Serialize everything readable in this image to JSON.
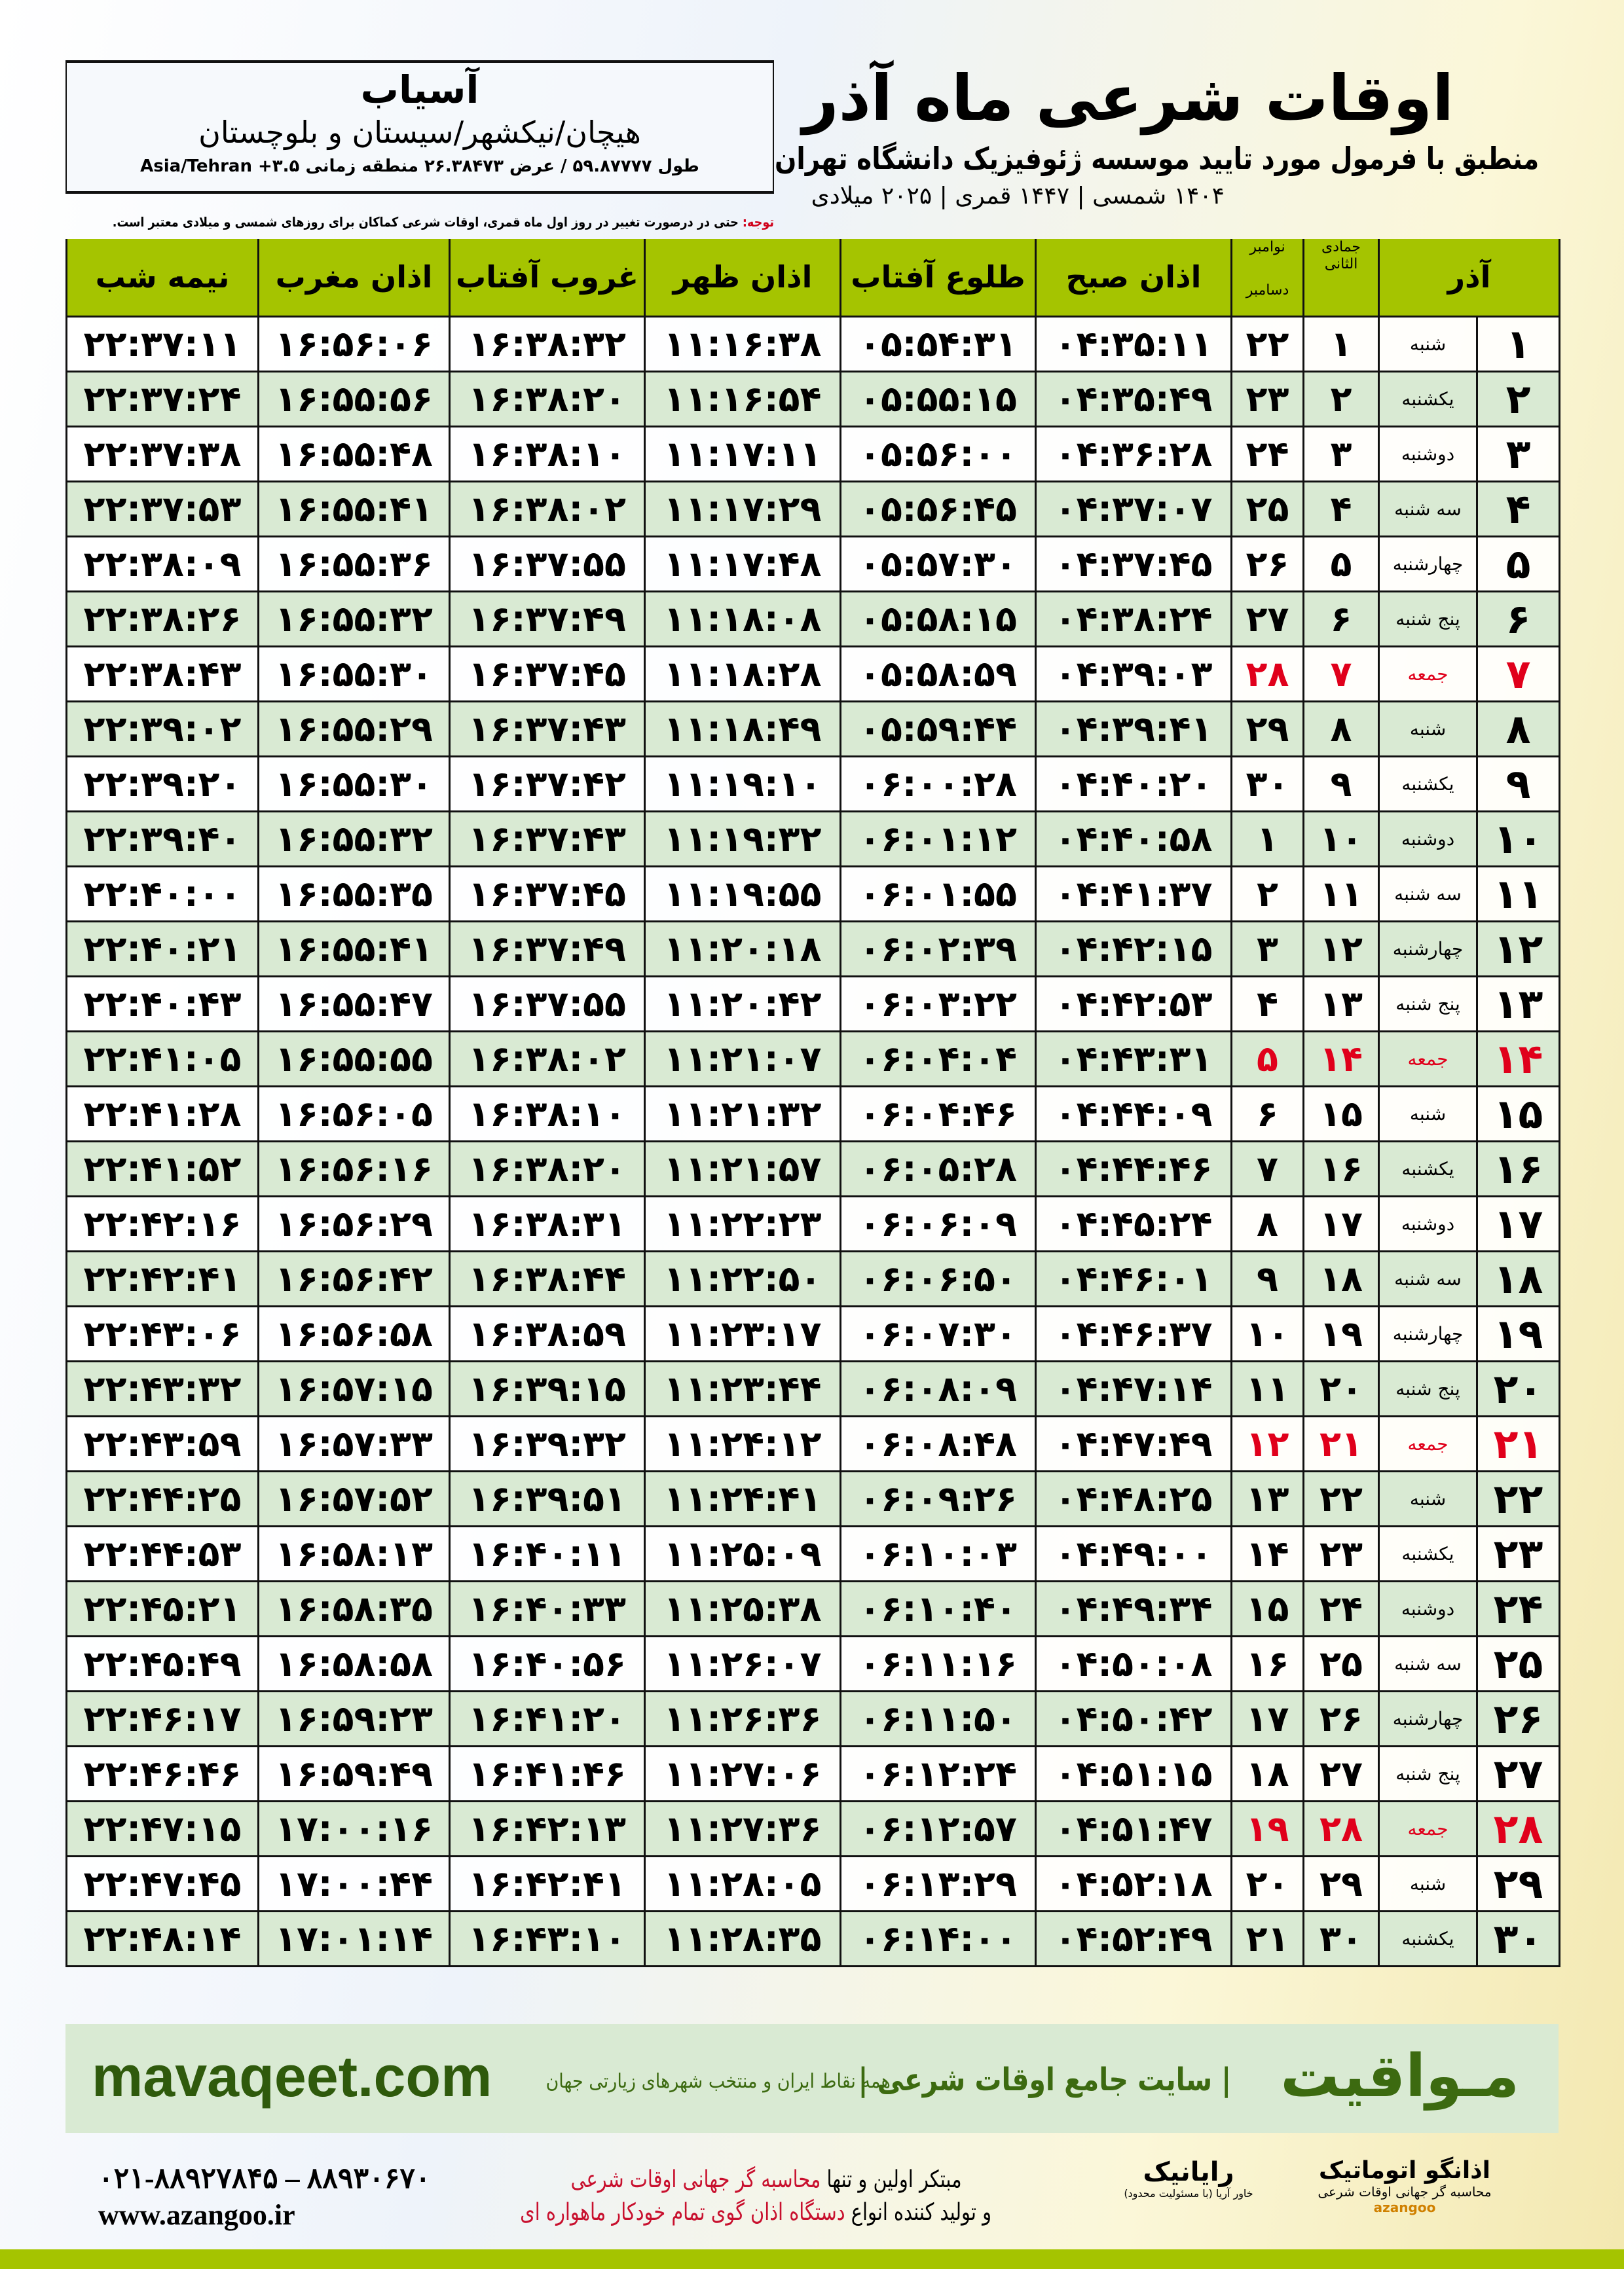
{
  "location": {
    "city": "آسیاب",
    "province": "هیچان/نیکشهر/سیستان و بلوچستان",
    "coords": "طول ۵۹.۸۷۷۷۷ / عرض ۲۶.۳۸۴۷۳ منطقه زمانی ۳.۵+ Asia/Tehran"
  },
  "header": {
    "title": "اوقات شرعی ماه آذر",
    "subtitle": "منطبق با فرمول مورد تایید موسسه ژئوفیزیک دانشگاه تهران",
    "dates": "۱۴۰۴ شمسی | ۱۴۴۷ قمری | ۲۰۲۵ میلادی"
  },
  "note": {
    "label": "توجه:",
    "text": " حتی در درصورت تغییر در روز اول ماه قمری، اوقات شرعی کماکان برای روزهای شمسی و میلادی معتبر است."
  },
  "columns": {
    "azar": "آذر",
    "jumada": "جمادی الثانی",
    "nov": "نوامبر",
    "dec": "دسامبر",
    "sobh": "اذان صبح",
    "tolu": "طلوع آفتاب",
    "zohr": "اذان ظهر",
    "ghorub": "غروب آفتاب",
    "maghrib": "اذان مغرب",
    "nimeh": "نیمه شب"
  },
  "highlight_color": "#e0001b",
  "header_color": "#a5c400",
  "rows": [
    [
      "۱",
      "شنبه",
      "۱",
      "۲۲",
      "۰۴:۳۵:۱۱",
      "۰۵:۵۴:۳۱",
      "۱۱:۱۶:۳۸",
      "۱۶:۳۸:۳۲",
      "۱۶:۵۶:۰۶",
      "۲۲:۳۷:۱۱"
    ],
    [
      "۲",
      "یکشنبه",
      "۲",
      "۲۳",
      "۰۴:۳۵:۴۹",
      "۰۵:۵۵:۱۵",
      "۱۱:۱۶:۵۴",
      "۱۶:۳۸:۲۰",
      "۱۶:۵۵:۵۶",
      "۲۲:۳۷:۲۴"
    ],
    [
      "۳",
      "دوشنبه",
      "۳",
      "۲۴",
      "۰۴:۳۶:۲۸",
      "۰۵:۵۶:۰۰",
      "۱۱:۱۷:۱۱",
      "۱۶:۳۸:۱۰",
      "۱۶:۵۵:۴۸",
      "۲۲:۳۷:۳۸"
    ],
    [
      "۴",
      "سه شنبه",
      "۴",
      "۲۵",
      "۰۴:۳۷:۰۷",
      "۰۵:۵۶:۴۵",
      "۱۱:۱۷:۲۹",
      "۱۶:۳۸:۰۲",
      "۱۶:۵۵:۴۱",
      "۲۲:۳۷:۵۳"
    ],
    [
      "۵",
      "چهارشنبه",
      "۵",
      "۲۶",
      "۰۴:۳۷:۴۵",
      "۰۵:۵۷:۳۰",
      "۱۱:۱۷:۴۸",
      "۱۶:۳۷:۵۵",
      "۱۶:۵۵:۳۶",
      "۲۲:۳۸:۰۹"
    ],
    [
      "۶",
      "پنج شنبه",
      "۶",
      "۲۷",
      "۰۴:۳۸:۲۴",
      "۰۵:۵۸:۱۵",
      "۱۱:۱۸:۰۸",
      "۱۶:۳۷:۴۹",
      "۱۶:۵۵:۳۲",
      "۲۲:۳۸:۲۶"
    ],
    [
      "۷",
      "جمعه",
      "۷",
      "۲۸",
      "۰۴:۳۹:۰۳",
      "۰۵:۵۸:۵۹",
      "۱۱:۱۸:۲۸",
      "۱۶:۳۷:۴۵",
      "۱۶:۵۵:۳۰",
      "۲۲:۳۸:۴۳"
    ],
    [
      "۸",
      "شنبه",
      "۸",
      "۲۹",
      "۰۴:۳۹:۴۱",
      "۰۵:۵۹:۴۴",
      "۱۱:۱۸:۴۹",
      "۱۶:۳۷:۴۳",
      "۱۶:۵۵:۲۹",
      "۲۲:۳۹:۰۲"
    ],
    [
      "۹",
      "یکشنبه",
      "۹",
      "۳۰",
      "۰۴:۴۰:۲۰",
      "۰۶:۰۰:۲۸",
      "۱۱:۱۹:۱۰",
      "۱۶:۳۷:۴۲",
      "۱۶:۵۵:۳۰",
      "۲۲:۳۹:۲۰"
    ],
    [
      "۱۰",
      "دوشنبه",
      "۱۰",
      "۱",
      "۰۴:۴۰:۵۸",
      "۰۶:۰۱:۱۲",
      "۱۱:۱۹:۳۲",
      "۱۶:۳۷:۴۳",
      "۱۶:۵۵:۳۲",
      "۲۲:۳۹:۴۰"
    ],
    [
      "۱۱",
      "سه شنبه",
      "۱۱",
      "۲",
      "۰۴:۴۱:۳۷",
      "۰۶:۰۱:۵۵",
      "۱۱:۱۹:۵۵",
      "۱۶:۳۷:۴۵",
      "۱۶:۵۵:۳۵",
      "۲۲:۴۰:۰۰"
    ],
    [
      "۱۲",
      "چهارشنبه",
      "۱۲",
      "۳",
      "۰۴:۴۲:۱۵",
      "۰۶:۰۲:۳۹",
      "۱۱:۲۰:۱۸",
      "۱۶:۳۷:۴۹",
      "۱۶:۵۵:۴۱",
      "۲۲:۴۰:۲۱"
    ],
    [
      "۱۳",
      "پنج شنبه",
      "۱۳",
      "۴",
      "۰۴:۴۲:۵۳",
      "۰۶:۰۳:۲۲",
      "۱۱:۲۰:۴۲",
      "۱۶:۳۷:۵۵",
      "۱۶:۵۵:۴۷",
      "۲۲:۴۰:۴۳"
    ],
    [
      "۱۴",
      "جمعه",
      "۱۴",
      "۵",
      "۰۴:۴۳:۳۱",
      "۰۶:۰۴:۰۴",
      "۱۱:۲۱:۰۷",
      "۱۶:۳۸:۰۲",
      "۱۶:۵۵:۵۵",
      "۲۲:۴۱:۰۵"
    ],
    [
      "۱۵",
      "شنبه",
      "۱۵",
      "۶",
      "۰۴:۴۴:۰۹",
      "۰۶:۰۴:۴۶",
      "۱۱:۲۱:۳۲",
      "۱۶:۳۸:۱۰",
      "۱۶:۵۶:۰۵",
      "۲۲:۴۱:۲۸"
    ],
    [
      "۱۶",
      "یکشنبه",
      "۱۶",
      "۷",
      "۰۴:۴۴:۴۶",
      "۰۶:۰۵:۲۸",
      "۱۱:۲۱:۵۷",
      "۱۶:۳۸:۲۰",
      "۱۶:۵۶:۱۶",
      "۲۲:۴۱:۵۲"
    ],
    [
      "۱۷",
      "دوشنبه",
      "۱۷",
      "۸",
      "۰۴:۴۵:۲۴",
      "۰۶:۰۶:۰۹",
      "۱۱:۲۲:۲۳",
      "۱۶:۳۸:۳۱",
      "۱۶:۵۶:۲۹",
      "۲۲:۴۲:۱۶"
    ],
    [
      "۱۸",
      "سه شنبه",
      "۱۸",
      "۹",
      "۰۴:۴۶:۰۱",
      "۰۶:۰۶:۵۰",
      "۱۱:۲۲:۵۰",
      "۱۶:۳۸:۴۴",
      "۱۶:۵۶:۴۲",
      "۲۲:۴۲:۴۱"
    ],
    [
      "۱۹",
      "چهارشنبه",
      "۱۹",
      "۱۰",
      "۰۴:۴۶:۳۷",
      "۰۶:۰۷:۳۰",
      "۱۱:۲۳:۱۷",
      "۱۶:۳۸:۵۹",
      "۱۶:۵۶:۵۸",
      "۲۲:۴۳:۰۶"
    ],
    [
      "۲۰",
      "پنج شنبه",
      "۲۰",
      "۱۱",
      "۰۴:۴۷:۱۴",
      "۰۶:۰۸:۰۹",
      "۱۱:۲۳:۴۴",
      "۱۶:۳۹:۱۵",
      "۱۶:۵۷:۱۵",
      "۲۲:۴۳:۳۲"
    ],
    [
      "۲۱",
      "جمعه",
      "۲۱",
      "۱۲",
      "۰۴:۴۷:۴۹",
      "۰۶:۰۸:۴۸",
      "۱۱:۲۴:۱۲",
      "۱۶:۳۹:۳۲",
      "۱۶:۵۷:۳۳",
      "۲۲:۴۳:۵۹"
    ],
    [
      "۲۲",
      "شنبه",
      "۲۲",
      "۱۳",
      "۰۴:۴۸:۲۵",
      "۰۶:۰۹:۲۶",
      "۱۱:۲۴:۴۱",
      "۱۶:۳۹:۵۱",
      "۱۶:۵۷:۵۲",
      "۲۲:۴۴:۲۵"
    ],
    [
      "۲۳",
      "یکشنبه",
      "۲۳",
      "۱۴",
      "۰۴:۴۹:۰۰",
      "۰۶:۱۰:۰۳",
      "۱۱:۲۵:۰۹",
      "۱۶:۴۰:۱۱",
      "۱۶:۵۸:۱۳",
      "۲۲:۴۴:۵۳"
    ],
    [
      "۲۴",
      "دوشنبه",
      "۲۴",
      "۱۵",
      "۰۴:۴۹:۳۴",
      "۰۶:۱۰:۴۰",
      "۱۱:۲۵:۳۸",
      "۱۶:۴۰:۳۳",
      "۱۶:۵۸:۳۵",
      "۲۲:۴۵:۲۱"
    ],
    [
      "۲۵",
      "سه شنبه",
      "۲۵",
      "۱۶",
      "۰۴:۵۰:۰۸",
      "۰۶:۱۱:۱۶",
      "۱۱:۲۶:۰۷",
      "۱۶:۴۰:۵۶",
      "۱۶:۵۸:۵۸",
      "۲۲:۴۵:۴۹"
    ],
    [
      "۲۶",
      "چهارشنبه",
      "۲۶",
      "۱۷",
      "۰۴:۵۰:۴۲",
      "۰۶:۱۱:۵۰",
      "۱۱:۲۶:۳۶",
      "۱۶:۴۱:۲۰",
      "۱۶:۵۹:۲۳",
      "۲۲:۴۶:۱۷"
    ],
    [
      "۲۷",
      "پنج شنبه",
      "۲۷",
      "۱۸",
      "۰۴:۵۱:۱۵",
      "۰۶:۱۲:۲۴",
      "۱۱:۲۷:۰۶",
      "۱۶:۴۱:۴۶",
      "۱۶:۵۹:۴۹",
      "۲۲:۴۶:۴۶"
    ],
    [
      "۲۸",
      "جمعه",
      "۲۸",
      "۱۹",
      "۰۴:۵۱:۴۷",
      "۰۶:۱۲:۵۷",
      "۱۱:۲۷:۳۶",
      "۱۶:۴۲:۱۳",
      "۱۷:۰۰:۱۶",
      "۲۲:۴۷:۱۵"
    ],
    [
      "۲۹",
      "شنبه",
      "۲۹",
      "۲۰",
      "۰۴:۵۲:۱۸",
      "۰۶:۱۳:۲۹",
      "۱۱:۲۸:۰۵",
      "۱۶:۴۲:۴۱",
      "۱۷:۰۰:۴۴",
      "۲۲:۴۷:۴۵"
    ],
    [
      "۳۰",
      "یکشنبه",
      "۳۰",
      "۲۱",
      "۰۴:۵۲:۴۹",
      "۰۶:۱۴:۰۰",
      "۱۱:۲۸:۳۵",
      "۱۶:۴۳:۱۰",
      "۱۷:۰۱:۱۴",
      "۲۲:۴۸:۱۴"
    ]
  ],
  "band": {
    "brand": "مـواقیت",
    "tagline": "| سایت جامع اوقات شرعی |",
    "tagline2": "همه نقاط ایران و منتخب شهرهای زیارتی جهان",
    "url": "mavaqeet.com"
  },
  "footer": {
    "logo1_name": "اذانگو اتوماتیک",
    "logo1_sub": "محاسبه گر جهانی اوقات شرعی",
    "logo1_latin": "azangoo",
    "logo2_name": "رایانیک",
    "logo2_sub": "خاور آریا (با مسئولیت محدود)",
    "promo_line1_a": "مبتکر اولین و تنها ",
    "promo_line1_b": "محاسبه گر جهانی اوقات شرعی",
    "promo_line2_a": "و تولید کننده انواع ",
    "promo_line2_b": "دستگاه اذان گوی تمام خودکار ماهواره ای",
    "phone": "۰۲۱-۸۸۹۲۷۸۴۵ – ۸۸۹۳۰۶۷۰",
    "website": "www.azangoo.ir"
  }
}
